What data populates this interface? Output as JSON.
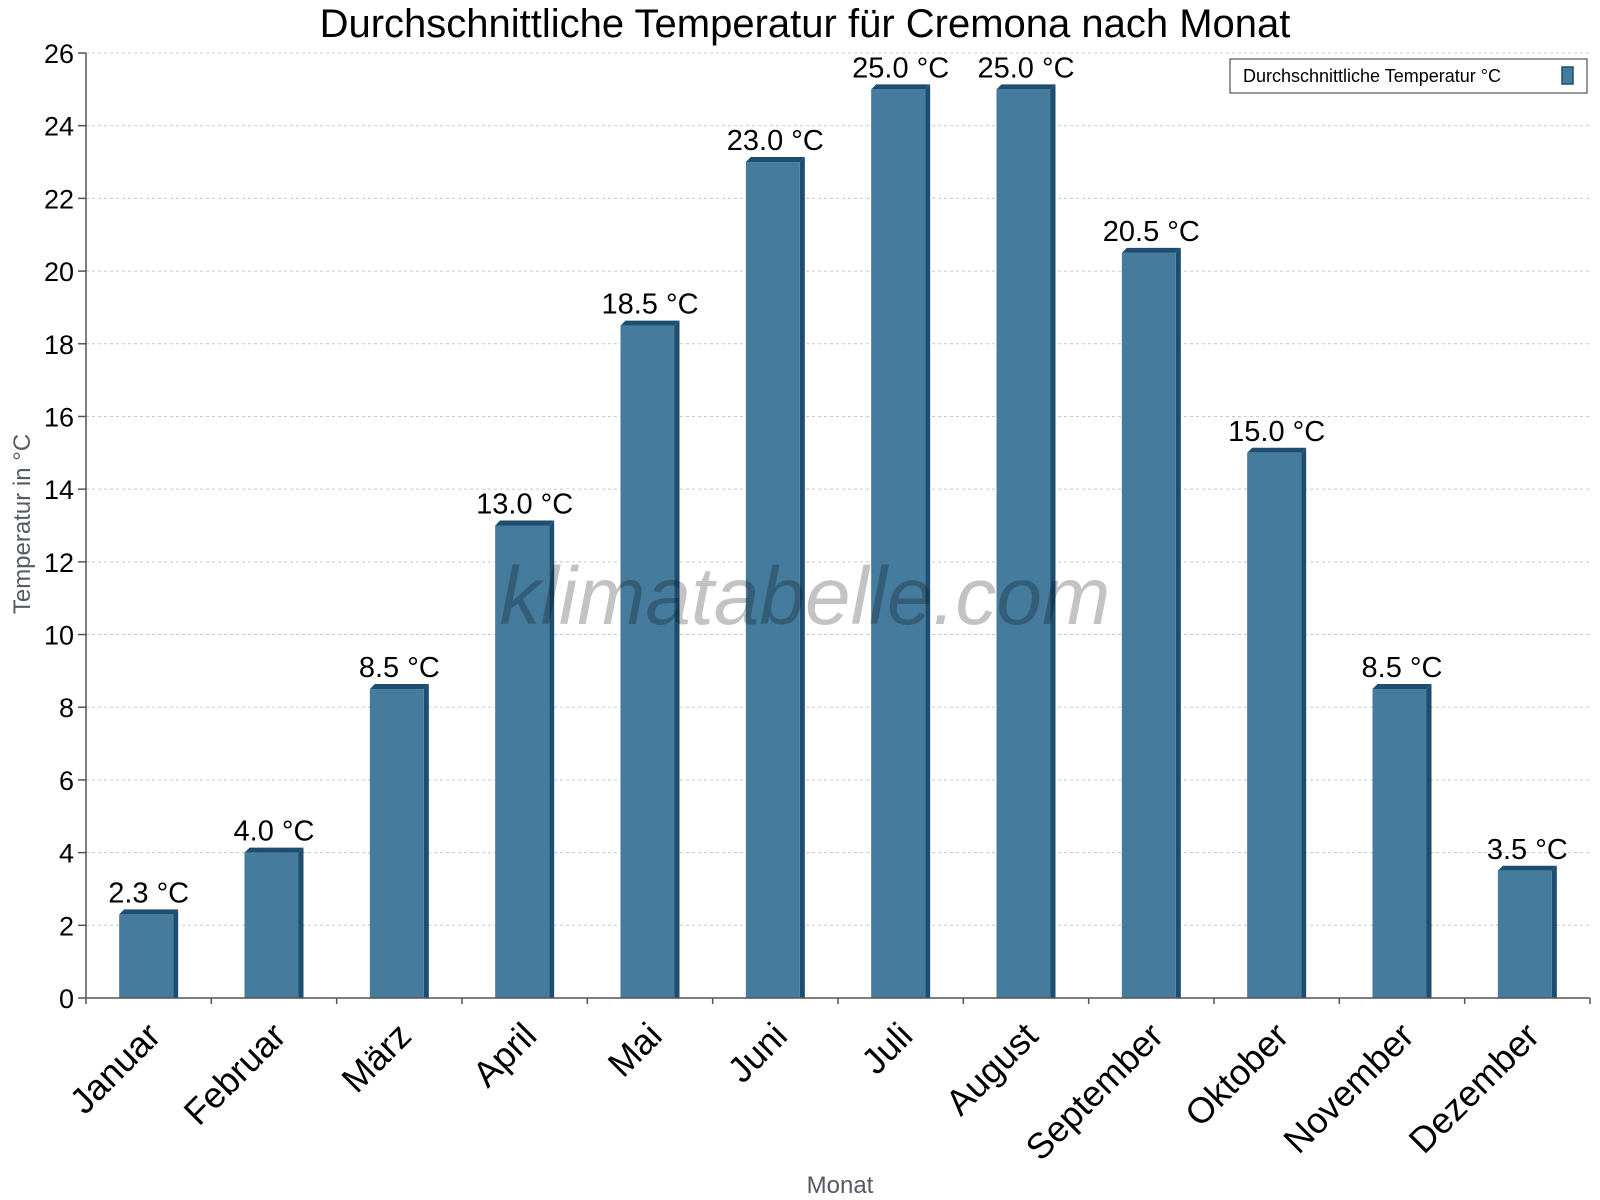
{
  "chart_data": {
    "type": "bar",
    "title": "Durchschnittliche Temperatur für Cremona nach Monat",
    "xlabel": "Monat",
    "ylabel": "Temperatur in °C",
    "categories": [
      "Januar",
      "Februar",
      "März",
      "April",
      "Mai",
      "Juni",
      "Juli",
      "August",
      "September",
      "Oktober",
      "November",
      "Dezember"
    ],
    "series": [
      {
        "name": "Durchschnittliche Temperatur °C",
        "values": [
          2.3,
          4.0,
          8.5,
          13.0,
          18.5,
          23.0,
          25.0,
          25.0,
          20.5,
          15.0,
          8.5,
          3.5
        ],
        "labels": [
          "2.3 °C",
          "4.0 °C",
          "8.5 °C",
          "13.0 °C",
          "18.5 °C",
          "23.0 °C",
          "25.0 °C",
          "25.0 °C",
          "20.5 °C",
          "15.0 °C",
          "8.5 °C",
          "3.5 °C"
        ]
      }
    ],
    "ylim": [
      0,
      26
    ],
    "yticks": [
      "0",
      "2",
      "4",
      "6",
      "8",
      "10",
      "12",
      "14",
      "16",
      "18",
      "20",
      "22",
      "24",
      "26"
    ],
    "grid": true,
    "legend_position": "top-right",
    "colors": {
      "bar_face": "#457b9d",
      "bar_side": "#1d4e70",
      "grid": "#c8c8c8",
      "axis": "#555555"
    }
  },
  "watermark": "klimatabelle.com"
}
